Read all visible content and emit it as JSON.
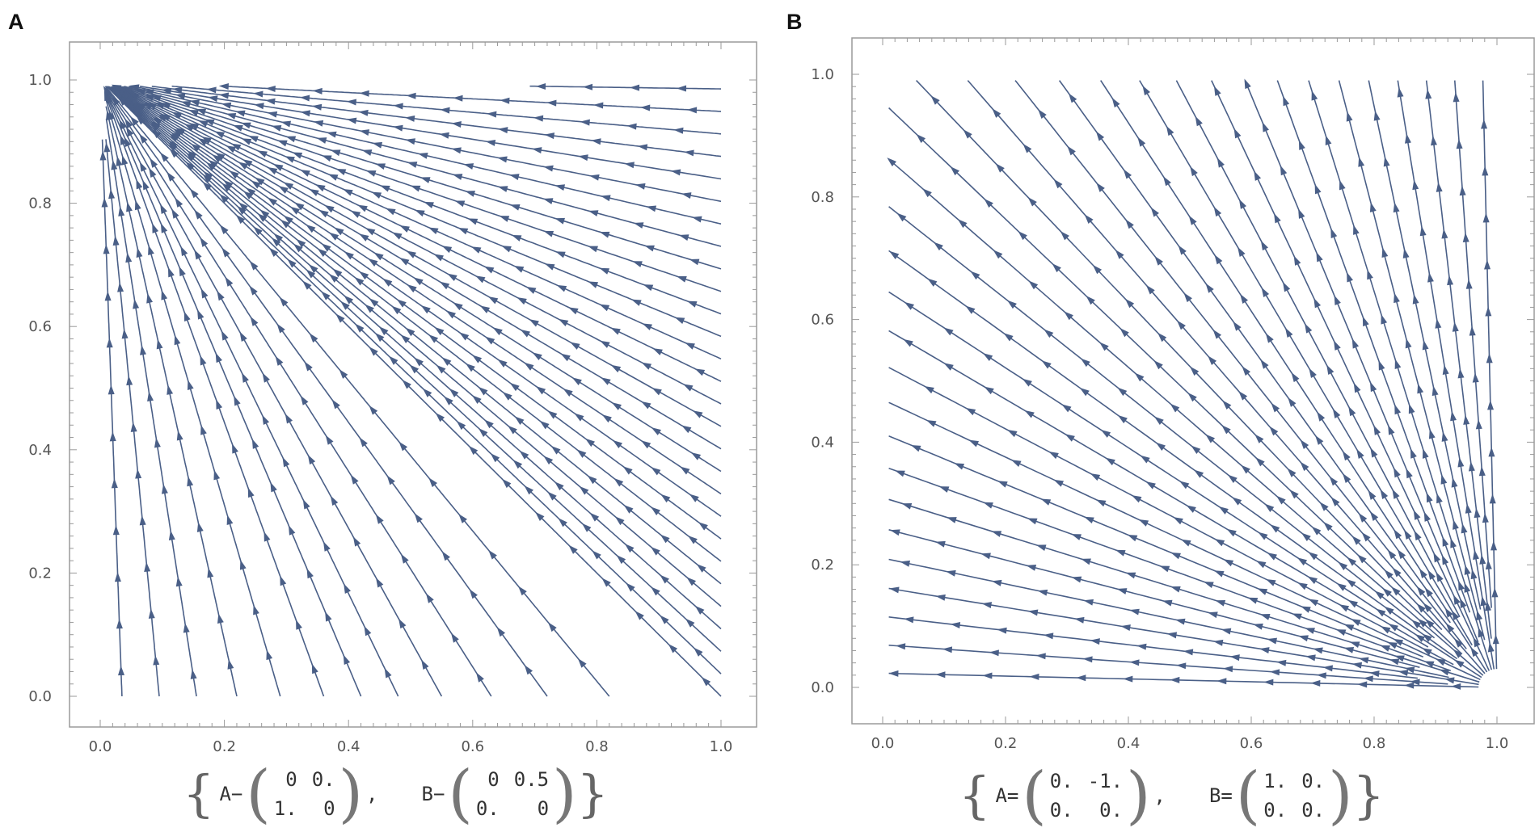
{
  "panels": [
    {
      "label": "A",
      "caption": {
        "open": "{",
        "close": "}",
        "separator": ",",
        "A_label": "A−",
        "B_label": "B−",
        "A_matrix": [
          [
            "0",
            "0."
          ],
          [
            "1.",
            "0"
          ]
        ],
        "B_matrix": [
          [
            "0",
            "0.5"
          ],
          [
            "0.",
            "0"
          ]
        ]
      }
    },
    {
      "label": "B",
      "caption": {
        "open": "{",
        "close": "}",
        "separator": ",",
        "A_label": "A=",
        "B_label": "B=",
        "A_matrix": [
          [
            "0.",
            "-1."
          ],
          [
            "0.",
            "0."
          ]
        ],
        "B_matrix": [
          [
            "1.",
            "0."
          ],
          [
            "0.",
            "0."
          ]
        ]
      }
    }
  ],
  "chart_data": [
    {
      "type": "streamplot",
      "panel": "A",
      "title": "",
      "xlabel": "",
      "ylabel": "",
      "xlim": [
        0.0,
        1.0
      ],
      "ylim": [
        0.0,
        1.0
      ],
      "xticks": [
        "0.0",
        "0.2",
        "0.4",
        "0.6",
        "0.8",
        "1.0"
      ],
      "yticks": [
        "0.0",
        "0.2",
        "0.4",
        "0.6",
        "0.8",
        "1.0"
      ],
      "grid": false,
      "legend": "none",
      "flow": "streamlines converge toward the upper-left corner (0, 1)",
      "line_color": "#4a5f87"
    },
    {
      "type": "streamplot",
      "panel": "B",
      "title": "",
      "xlabel": "",
      "ylabel": "",
      "xlim": [
        0.0,
        1.0
      ],
      "ylim": [
        0.0,
        1.0
      ],
      "xticks": [
        "0.0",
        "0.2",
        "0.4",
        "0.6",
        "0.8",
        "1.0"
      ],
      "yticks": [
        "0.0",
        "0.2",
        "0.4",
        "0.6",
        "0.8",
        "1.0"
      ],
      "grid": false,
      "legend": "none",
      "flow": "straight streamlines radiating from the lower-right corner (1, 0)",
      "line_color": "#4a5f87"
    }
  ]
}
